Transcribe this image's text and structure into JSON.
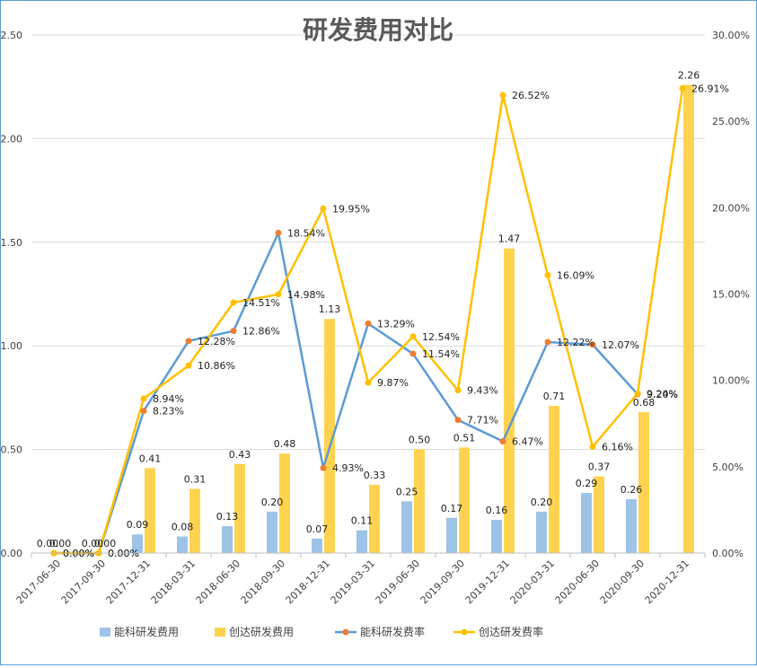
{
  "chart_data": {
    "type": "bar",
    "title": "研发费用对比",
    "categories": [
      "2017-06-30",
      "2017-09-30",
      "2017-12-31",
      "2018-03-31",
      "2018-06-30",
      "2018-09-30",
      "2018-12-31",
      "2019-03-31",
      "2019-06-30",
      "2019-09-30",
      "2019-12-31",
      "2020-03-31",
      "2020-06-30",
      "2020-09-30",
      "2020-12-31"
    ],
    "y_left": {
      "range": [
        0,
        2.5
      ],
      "ticks": [
        "0.00",
        "0.50",
        "1.00",
        "1.50",
        "2.00",
        "2.50"
      ]
    },
    "y_right": {
      "range": [
        0,
        30
      ],
      "ticks": [
        "0.00%",
        "5.00%",
        "10.00%",
        "15.00%",
        "20.00%",
        "25.00%",
        "30.00%"
      ]
    },
    "grid": true,
    "legend_position": "bottom",
    "series": [
      {
        "name": "能科研发费用",
        "kind": "bar",
        "axis": "left",
        "color": "#9dc3e6",
        "values": [
          0.0,
          0.0,
          0.09,
          0.08,
          0.13,
          0.2,
          0.07,
          0.11,
          0.25,
          0.17,
          0.16,
          0.2,
          0.29,
          0.26,
          null
        ],
        "labels": [
          "0.00",
          "0.00",
          "0.09",
          "0.08",
          "0.13",
          "0.20",
          "0.07",
          "0.11",
          "0.25",
          "0.17",
          "0.16",
          "0.20",
          "0.29",
          "0.26",
          ""
        ]
      },
      {
        "name": "创达研发费用",
        "kind": "bar",
        "axis": "left",
        "color": "#ffd34f",
        "values": [
          0.0,
          0.0,
          0.41,
          0.31,
          0.43,
          0.48,
          1.13,
          0.33,
          0.5,
          0.51,
          1.47,
          0.71,
          0.37,
          0.68,
          2.26
        ],
        "labels": [
          "0.00",
          "0.00",
          "0.41",
          "0.31",
          "0.43",
          "0.48",
          "1.13",
          "0.33",
          "0.50",
          "0.51",
          "1.47",
          "0.71",
          "0.37",
          "0.68",
          "2.26"
        ]
      },
      {
        "name": "能科研发费率",
        "kind": "line",
        "axis": "right",
        "color": "#5b9bd5",
        "marker_color": "#ed7d31",
        "values": [
          0.0,
          0.0,
          8.23,
          12.28,
          12.86,
          18.54,
          4.93,
          13.29,
          11.54,
          7.71,
          6.47,
          12.22,
          12.07,
          9.2,
          null
        ],
        "labels": [
          "0.00%",
          "0.00%",
          "8.23%",
          "12.28%",
          "12.86%",
          "18.54%",
          "4.93%",
          "13.29%",
          "11.54%",
          "7.71%",
          "6.47%",
          "12.22%",
          "12.07%",
          "9.20%",
          ""
        ]
      },
      {
        "name": "创达研发费率",
        "kind": "line",
        "axis": "right",
        "color": "#ffc000",
        "marker_color": "#ffc000",
        "values": [
          0.0,
          0.0,
          8.94,
          10.86,
          14.51,
          14.98,
          19.95,
          9.87,
          12.54,
          9.43,
          26.52,
          16.09,
          6.16,
          9.24,
          26.91
        ],
        "labels": [
          "0.00%",
          "0.00%",
          "8.94%",
          "10.86%",
          "14.51%",
          "14.98%",
          "19.95%",
          "9.87%",
          "12.54%",
          "9.43%",
          "26.52%",
          "16.09%",
          "6.16%",
          "9.24%",
          "26.91%"
        ]
      }
    ]
  }
}
